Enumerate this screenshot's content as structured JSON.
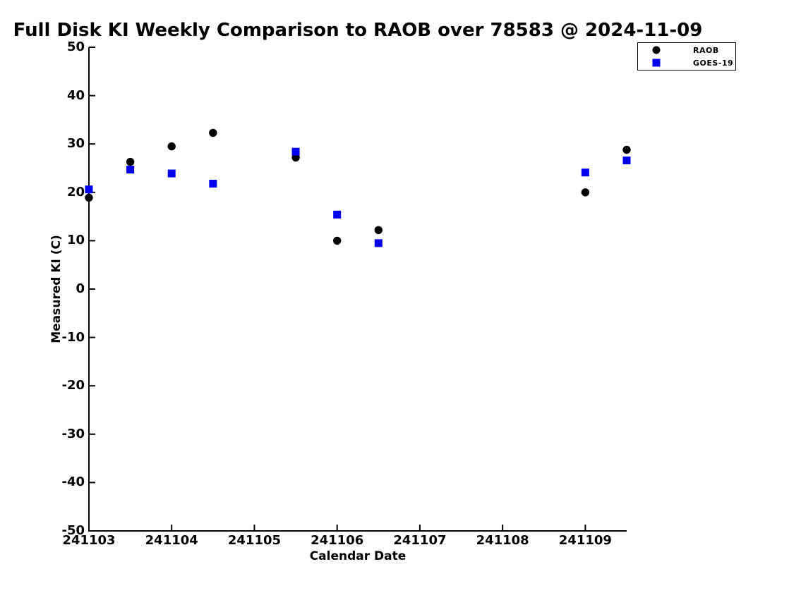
{
  "chart_data": {
    "type": "scatter",
    "title": "Full Disk KI Weekly Comparison to RAOB over 78583 @ 2024-11-09",
    "xlabel": "Calendar Date",
    "ylabel": "Measured KI (C)",
    "xlim": [
      241103,
      241109.5
    ],
    "ylim": [
      -50,
      50
    ],
    "x_ticks": [
      241103,
      241104,
      241105,
      241106,
      241107,
      241108,
      241109
    ],
    "y_ticks": [
      50,
      40,
      30,
      20,
      10,
      0,
      -10,
      -20,
      -30,
      -40,
      -50
    ],
    "grid": false,
    "legend_position": "top-right",
    "series": [
      {
        "name": "RAOB",
        "marker": "circle",
        "color": "#000000",
        "points": [
          [
            241103.0,
            18.9
          ],
          [
            241103.5,
            26.3
          ],
          [
            241104.0,
            29.5
          ],
          [
            241104.5,
            32.3
          ],
          [
            241105.5,
            27.2
          ],
          [
            241106.0,
            10.0
          ],
          [
            241106.5,
            12.2
          ],
          [
            241109.0,
            20.0
          ],
          [
            241109.5,
            28.8
          ]
        ]
      },
      {
        "name": "GOES-19",
        "marker": "square",
        "color": "#0000ee",
        "points": [
          [
            241103.0,
            20.6
          ],
          [
            241103.5,
            24.7
          ],
          [
            241104.0,
            23.9
          ],
          [
            241104.5,
            21.8
          ],
          [
            241105.5,
            28.4
          ],
          [
            241106.0,
            15.4
          ],
          [
            241106.5,
            9.5
          ],
          [
            241109.0,
            24.1
          ],
          [
            241109.5,
            26.6
          ]
        ]
      }
    ]
  },
  "legend": {
    "items": [
      {
        "label": "RAOB"
      },
      {
        "label": "GOES-19"
      }
    ]
  },
  "colors": {
    "axis": "#000000",
    "raob": "#000000",
    "goes19": "#0000ee",
    "background": "#ffffff"
  }
}
